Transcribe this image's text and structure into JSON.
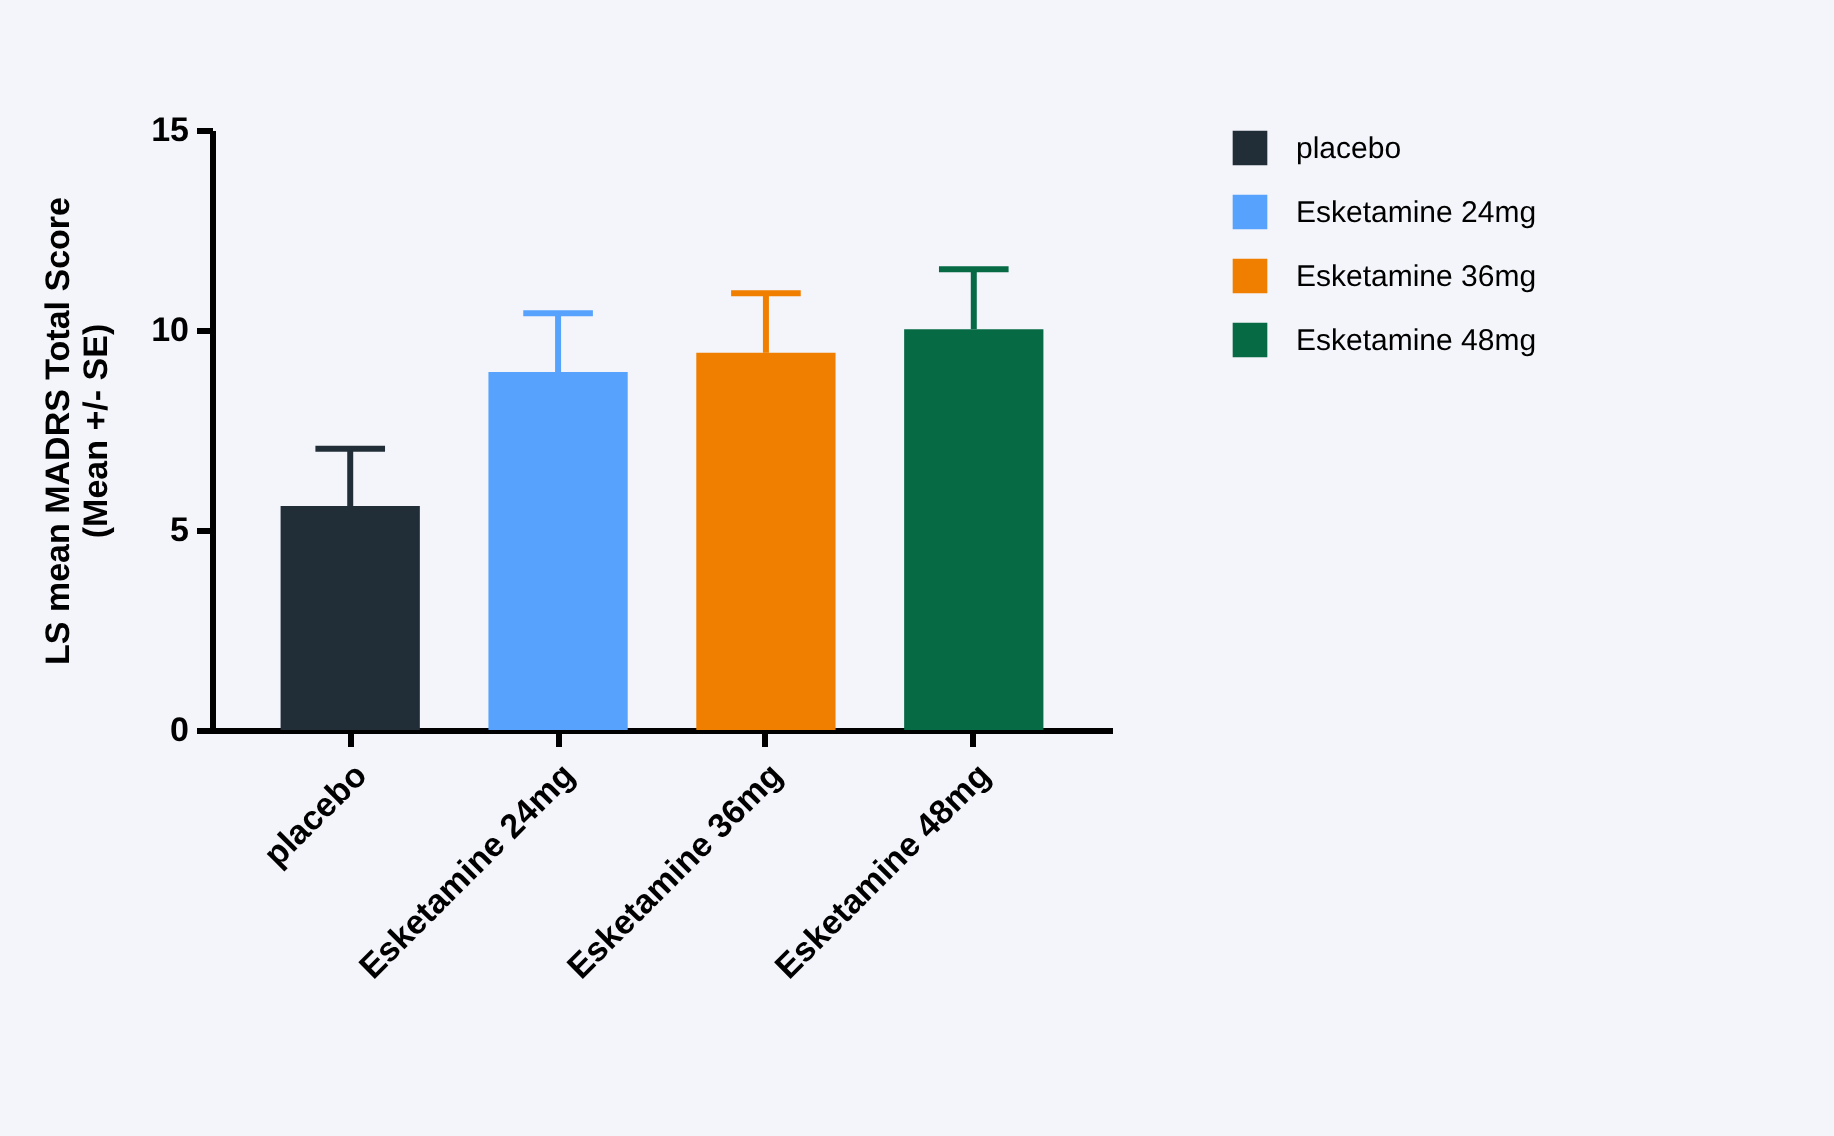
{
  "chart_data": {
    "type": "bar",
    "ylabel": "LS mean MADRS Total Score\n(Mean +/- SE)",
    "categories": [
      "placebo",
      "Esketamine 24mg",
      "Esketamine 36mg",
      "Esketamine 48mg"
    ],
    "series": [
      {
        "name": "placebo",
        "color": "#212e38",
        "values": [
          5.6,
          null,
          null,
          null
        ],
        "errors": [
          [
            5.6,
            7.03
          ],
          null,
          null,
          null
        ]
      },
      {
        "name": "Esketamine 24mg",
        "color": "#56a2fd",
        "values": [
          null,
          8.95,
          null,
          null
        ],
        "errors": [
          null,
          [
            8.95,
            10.42
          ],
          null,
          null
        ]
      },
      {
        "name": "Esketamine 36mg",
        "color": "#f07f00",
        "values": [
          null,
          null,
          9.43,
          null
        ],
        "errors": [
          null,
          null,
          [
            9.43,
            10.92
          ],
          null
        ]
      },
      {
        "name": "Esketamine 48mg",
        "color": "#066a45",
        "values": [
          null,
          null,
          null,
          10.02
        ],
        "errors": [
          null,
          null,
          null,
          [
            10.02,
            11.52
          ]
        ]
      }
    ],
    "ylim": [
      0,
      15
    ],
    "yticks": [
      0,
      5,
      10,
      15
    ],
    "grid": false,
    "legend": "top right"
  }
}
